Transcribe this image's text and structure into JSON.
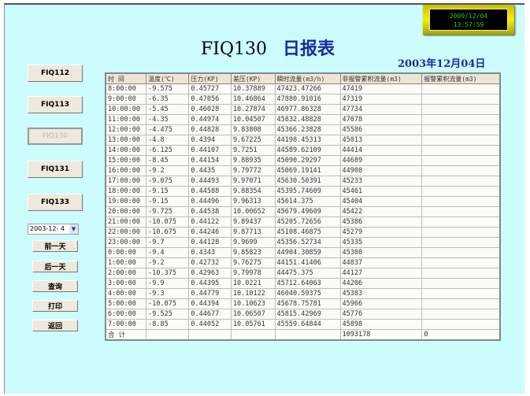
{
  "clock": {
    "date": "2009/12/04",
    "time": "13:57:59"
  },
  "title": {
    "code": "FIQ130",
    "name": "日报表"
  },
  "report_date": "2003年12月04日",
  "nav": [
    {
      "label": "FIQ112",
      "active": false
    },
    {
      "label": "FIQ113",
      "active": false
    },
    {
      "label": "FIQ130",
      "active": true
    },
    {
      "label": "FIQ131",
      "active": false
    },
    {
      "label": "FIQ133",
      "active": false
    }
  ],
  "date_select": "2003-12- 4",
  "actions": {
    "prev": "前一天",
    "next": "后一天",
    "query": "查询",
    "print": "打印",
    "back": "返回"
  },
  "table": {
    "headers": [
      "时 间",
      "温度(℃)",
      "压力(KP)",
      "差压(KP)",
      "瞬时流量(m3/h)",
      "非报警累积流量(m3)",
      "报警累积流量(m3)"
    ],
    "rows": [
      [
        "8:00:00",
        "-9.575",
        "0.45727",
        "10.37889",
        "47423.47266",
        "47419",
        ""
      ],
      [
        "9:00:00",
        "-6.35",
        "0.47056",
        "10.46864",
        "47880.91016",
        "47319",
        ""
      ],
      [
        "10:00:00",
        "-5.45",
        "0.46028",
        "10.27874",
        "46977.86328",
        "47734",
        ""
      ],
      [
        "11:00:00",
        "-4.35",
        "0.44974",
        "10.04507",
        "45832.48828",
        "47078",
        ""
      ],
      [
        "12:00:00",
        "-4.475",
        "0.44828",
        "9.83808",
        "45366.23828",
        "45586",
        ""
      ],
      [
        "13:00:00",
        "-4.8",
        "0.4394",
        "9.67225",
        "44198.45313",
        "45013",
        ""
      ],
      [
        "14:00:00",
        "-6.125",
        "0.44107",
        "9.7251",
        "44589.62109",
        "44414",
        ""
      ],
      [
        "15:00:00",
        "-8.45",
        "0.44154",
        "9.88935",
        "45090.29297",
        "44689",
        ""
      ],
      [
        "16:00:00",
        "-9.2",
        "0.4435",
        "9.79772",
        "45069.19141",
        "44908",
        ""
      ],
      [
        "17:00:00",
        "-9.075",
        "0.44493",
        "9.97071",
        "45630.50391",
        "45233",
        ""
      ],
      [
        "18:00:00",
        "-9.15",
        "0.44588",
        "9.88354",
        "45395.74609",
        "45461",
        ""
      ],
      [
        "19:00:00",
        "-9.15",
        "0.44496",
        "9.96313",
        "45614.375",
        "45404",
        ""
      ],
      [
        "20:00:00",
        "-9.725",
        "0.44538",
        "10.00652",
        "45679.49609",
        "45422",
        ""
      ],
      [
        "21:00:00",
        "-10.075",
        "0.44122",
        "9.89437",
        "45205.72656",
        "45386",
        ""
      ],
      [
        "22:00:00",
        "-10.675",
        "0.44246",
        "9.87713",
        "45108.46875",
        "45279",
        ""
      ],
      [
        "23:00:00",
        "-9.7",
        "0.44128",
        "9.9699",
        "45356.52734",
        "45335",
        ""
      ],
      [
        "0:00:00",
        "-9.4",
        "0.4343",
        "9.85823",
        "44904.30859",
        "45308",
        ""
      ],
      [
        "1:00:00",
        "-9.2",
        "0.42732",
        "9.76275",
        "44151.41406",
        "44837",
        ""
      ],
      [
        "2:00:00",
        "-10.375",
        "0.42963",
        "9.79978",
        "44475.375",
        "44127",
        ""
      ],
      [
        "3:00:00",
        "-9.9",
        "0.44395",
        "10.0221",
        "45712.64063",
        "44206",
        ""
      ],
      [
        "4:00:00",
        "-9.3",
        "0.44779",
        "10.10122",
        "46040.59375",
        "45383",
        ""
      ],
      [
        "5:00:00",
        "-10.075",
        "0.44394",
        "10.10623",
        "45678.75781",
        "45966",
        ""
      ],
      [
        "6:00:00",
        "-9.525",
        "0.44677",
        "10.06507",
        "45815.42969",
        "45776",
        ""
      ],
      [
        "7:00:00",
        "-8.85",
        "0.44052",
        "10.05761",
        "45559.64844",
        "45898",
        ""
      ],
      [
        "合 计",
        "",
        "",
        "",
        "",
        "1093178",
        "0"
      ]
    ]
  }
}
